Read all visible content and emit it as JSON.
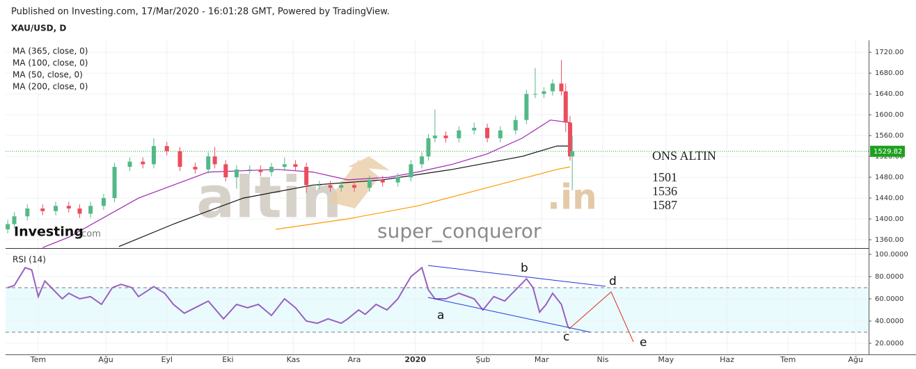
{
  "header": {
    "published": "Published on Investing.com, 17/Mar/2020 - 16:01:28 GMT, Powered by TradingView.",
    "symbol": "XAU/USD, D"
  },
  "chart_data": {
    "type": "candlestick",
    "indicators": [
      "MA (365, close, 0)",
      "MA (100, close, 0)",
      "MA (50, close, 0)",
      "MA (200, close, 0)"
    ],
    "x": [
      -14,
      -11,
      -5,
      2,
      8,
      14,
      19,
      24,
      30,
      35,
      42,
      48,
      53,
      59,
      65,
      72,
      78,
      81,
      86,
      91,
      97,
      102,
      107,
      113,
      118,
      123,
      129,
      134,
      139,
      145,
      152,
      158,
      165,
      171,
      176,
      179,
      182,
      187,
      193,
      200,
      206,
      212,
      219,
      224,
      228,
      232,
      236,
      240,
      242,
      244,
      245
    ],
    "open": [
      1380,
      1390,
      1405,
      1420,
      1415,
      1425,
      1420,
      1410,
      1425,
      1440,
      1500,
      1510,
      1505,
      1540,
      1530,
      1500,
      1495,
      1520,
      1505,
      1480,
      1495,
      1495,
      1490,
      1500,
      1505,
      1500,
      1465,
      1465,
      1460,
      1465,
      1460,
      1475,
      1470,
      1480,
      1505,
      1520,
      1555,
      1560,
      1555,
      1570,
      1575,
      1555,
      1570,
      1590,
      1640,
      1640,
      1645,
      1660,
      1645,
      1585,
      1520
    ],
    "high": [
      1398,
      1413,
      1428,
      1428,
      1433,
      1433,
      1428,
      1433,
      1448,
      1508,
      1518,
      1518,
      1555,
      1548,
      1538,
      1508,
      1528,
      1538,
      1513,
      1503,
      1503,
      1503,
      1508,
      1518,
      1513,
      1508,
      1473,
      1473,
      1473,
      1473,
      1483,
      1483,
      1488,
      1513,
      1528,
      1563,
      1610,
      1568,
      1578,
      1585,
      1583,
      1578,
      1598,
      1648,
      1690,
      1653,
      1668,
      1705,
      1660,
      1598,
      1560
    ],
    "low": [
      1372,
      1382,
      1397,
      1407,
      1407,
      1412,
      1402,
      1402,
      1417,
      1432,
      1492,
      1497,
      1497,
      1522,
      1492,
      1487,
      1487,
      1497,
      1472,
      1458,
      1487,
      1482,
      1482,
      1492,
      1492,
      1450,
      1457,
      1452,
      1452,
      1452,
      1452,
      1462,
      1462,
      1472,
      1497,
      1512,
      1547,
      1547,
      1547,
      1562,
      1547,
      1547,
      1562,
      1582,
      1632,
      1632,
      1637,
      1637,
      1567,
      1512,
      1455
    ],
    "close": [
      1390,
      1405,
      1420,
      1415,
      1425,
      1420,
      1410,
      1425,
      1440,
      1500,
      1510,
      1505,
      1540,
      1530,
      1500,
      1495,
      1520,
      1505,
      1480,
      1495,
      1495,
      1490,
      1500,
      1505,
      1500,
      1465,
      1465,
      1460,
      1465,
      1460,
      1475,
      1470,
      1480,
      1505,
      1520,
      1555,
      1560,
      1555,
      1570,
      1575,
      1555,
      1570,
      1590,
      1640,
      1640,
      1645,
      1660,
      1645,
      1585,
      1520,
      1530
    ],
    "up_color": "#53b987",
    "down_color": "#eb4d5c",
    "xlim": [
      -15,
      381
    ],
    "xticks": [
      {
        "value": 0,
        "label": "Tem"
      },
      {
        "value": 31,
        "label": "Ağu"
      },
      {
        "value": 59,
        "label": "Eyl"
      },
      {
        "value": 87,
        "label": "Eki"
      },
      {
        "value": 117,
        "label": "Kas"
      },
      {
        "value": 145,
        "label": "Ara"
      },
      {
        "value": 173,
        "label": "2020"
      },
      {
        "value": 204,
        "label": "Şub"
      },
      {
        "value": 231,
        "label": "Mar"
      },
      {
        "value": 259,
        "label": "Nis"
      },
      {
        "value": 288,
        "label": "May"
      },
      {
        "value": 316,
        "label": "Haz"
      },
      {
        "value": 344,
        "label": "Tem"
      },
      {
        "value": 375,
        "label": "Ağu"
      }
    ],
    "ylim": [
      1344,
      1743
    ],
    "yticks": [
      {
        "value": 1360,
        "label": "1360.00"
      },
      {
        "value": 1400,
        "label": "1400.00"
      },
      {
        "value": 1440,
        "label": "1440.00"
      },
      {
        "value": 1480,
        "label": "1480.00"
      },
      {
        "value": 1520,
        "label": "1520.00"
      },
      {
        "value": 1560,
        "label": "1560.00"
      },
      {
        "value": 1600,
        "label": "1600.00"
      },
      {
        "value": 1640,
        "label": "1640.00"
      },
      {
        "value": 1680,
        "label": "1680.00"
      },
      {
        "value": 1720,
        "label": "1720.00"
      }
    ],
    "grid": true,
    "current_price": 1529.82,
    "price_color": "#1fa01f",
    "ma_lines": [
      {
        "color": "#ff9800",
        "x": [
          109,
          142,
          174,
          206,
          238,
          244
        ],
        "values": [
          1380,
          1400,
          1425,
          1460,
          1495,
          1500
        ]
      },
      {
        "color": "#9c27b0",
        "x": [
          2,
          14,
          46,
          78,
          110,
          126,
          142,
          161,
          174,
          190,
          206,
          222,
          235,
          244
        ],
        "values": [
          1345,
          1365,
          1440,
          1490,
          1495,
          1490,
          1475,
          1480,
          1490,
          1505,
          1525,
          1555,
          1590,
          1585
        ]
      },
      {
        "color": "#111111",
        "x": [
          37,
          62,
          94,
          126,
          158,
          190,
          222,
          238,
          244
        ],
        "values": [
          1347,
          1390,
          1440,
          1465,
          1475,
          1495,
          1520,
          1540,
          1540
        ]
      }
    ],
    "rsi": {
      "title": "RSI (14)",
      "color": "#9a5fbf",
      "x": [
        -14,
        -11,
        -6,
        -3,
        0,
        3,
        6,
        11,
        14,
        19,
        24,
        29,
        34,
        38,
        43,
        46,
        53,
        58,
        62,
        67,
        72,
        78,
        85,
        91,
        96,
        101,
        107,
        113,
        118,
        123,
        128,
        133,
        139,
        142,
        147,
        150,
        155,
        160,
        165,
        168,
        171,
        176,
        179,
        182,
        187,
        193,
        200,
        204,
        209,
        214,
        219,
        224,
        227,
        230,
        233,
        236,
        240,
        243,
        244
      ],
      "values": [
        70,
        72,
        88,
        86,
        62,
        76,
        70,
        60,
        65,
        60,
        62,
        55,
        70,
        73,
        70,
        62,
        71,
        65,
        55,
        47,
        52,
        58,
        42,
        55,
        52,
        55,
        45,
        60,
        52,
        40,
        38,
        42,
        38,
        42,
        50,
        46,
        55,
        50,
        60,
        70,
        80,
        88,
        68,
        60,
        60,
        65,
        60,
        50,
        62,
        58,
        68,
        78,
        70,
        48,
        55,
        65,
        55,
        35,
        33
      ],
      "ylim": [
        10,
        105
      ],
      "yticks": [
        {
          "value": 20,
          "label": "20.0000"
        },
        {
          "value": 40,
          "label": "40.0000"
        },
        {
          "value": 60,
          "label": "60.0000"
        },
        {
          "value": 80,
          "label": "80.0000"
        },
        {
          "value": 100,
          "label": "100.0000"
        }
      ],
      "levels": [
        30,
        70
      ]
    },
    "annotations": {
      "title": "ONS ALTIN",
      "levels": [
        "1501",
        "1536",
        "1587"
      ],
      "waves": [
        "a",
        "b",
        "c",
        "d",
        "e"
      ]
    },
    "watermarks": {
      "brand": "altin",
      "suffix": ".in",
      "author": "super_conqueror",
      "logo": "Investing",
      "logo_suffix": ".com"
    }
  }
}
